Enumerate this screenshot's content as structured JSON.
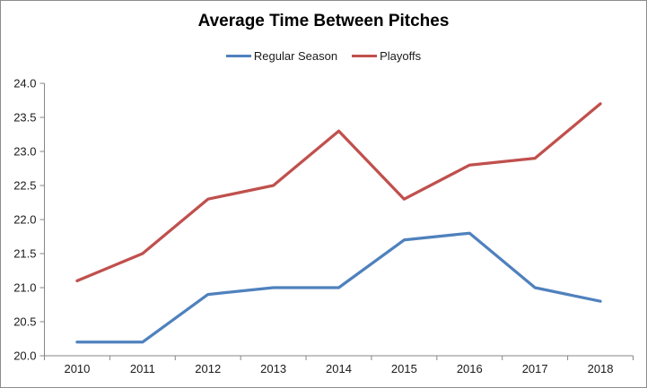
{
  "chart": {
    "colors": {
      "regular_season": "#4F81BD",
      "playoffs": "#C0504D",
      "axis": "#868686",
      "frame_border": "#8C8C8C",
      "text": "#1A1A1A",
      "background": "#FFFFFF"
    }
  },
  "chart_data": {
    "type": "line",
    "title": "Average Time Between Pitches",
    "categories": [
      "2010",
      "2011",
      "2012",
      "2013",
      "2014",
      "2015",
      "2016",
      "2017",
      "2018"
    ],
    "series": [
      {
        "name": "Regular Season",
        "color": "#4F81BD",
        "values": [
          20.2,
          20.2,
          20.9,
          21.0,
          21.0,
          21.7,
          21.8,
          21.0,
          20.8
        ]
      },
      {
        "name": "Playoffs",
        "color": "#C0504D",
        "values": [
          21.1,
          21.5,
          22.3,
          22.5,
          23.3,
          22.3,
          22.8,
          22.9,
          23.7
        ]
      }
    ],
    "xlabel": "",
    "ylabel": "",
    "ylim": [
      20.0,
      24.0
    ],
    "ytick_step": 0.5,
    "ytick_format_decimals": 1,
    "grid": false,
    "legend_position": "top"
  }
}
